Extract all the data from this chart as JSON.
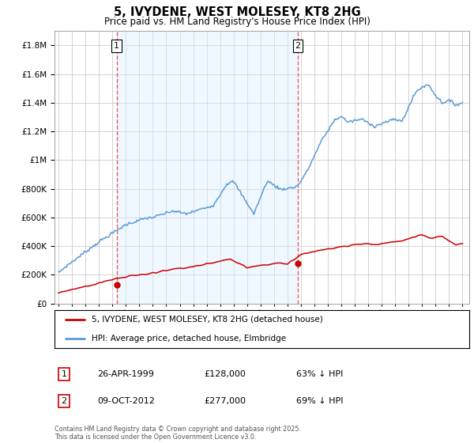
{
  "title": "5, IVYDENE, WEST MOLESEY, KT8 2HG",
  "subtitle": "Price paid vs. HM Land Registry's House Price Index (HPI)",
  "legend_line1": "5, IVYDENE, WEST MOLESEY, KT8 2HG (detached house)",
  "legend_line2": "HPI: Average price, detached house, Elmbridge",
  "annotation1": {
    "num": "1",
    "date": "26-APR-1999",
    "price": "£128,000",
    "pct": "63% ↓ HPI"
  },
  "annotation2": {
    "num": "2",
    "date": "09-OCT-2012",
    "price": "£277,000",
    "pct": "69% ↓ HPI"
  },
  "footer": "Contains HM Land Registry data © Crown copyright and database right 2025.\nThis data is licensed under the Open Government Licence v3.0.",
  "red_color": "#cc0000",
  "blue_color": "#5b9bd5",
  "blue_fill": "#ddeeff",
  "vline_color": "#e06060",
  "grid_color": "#cccccc",
  "bg_color": "#ffffff",
  "ylim_max": 1900000,
  "yticks": [
    0,
    200000,
    400000,
    600000,
    800000,
    1000000,
    1200000,
    1400000,
    1600000,
    1800000
  ],
  "xlim_start": 1994.7,
  "xlim_end": 2025.5,
  "sale1_x": 1999.32,
  "sale1_y": 128000,
  "sale2_x": 2012.77,
  "sale2_y": 277000,
  "hpi_years": [
    1995.0,
    1995.08,
    1995.17,
    1995.25,
    1995.33,
    1995.42,
    1995.5,
    1995.58,
    1995.67,
    1995.75,
    1995.83,
    1995.92,
    1996.0,
    1996.08,
    1996.17,
    1996.25,
    1996.33,
    1996.42,
    1996.5,
    1996.58,
    1996.67,
    1996.75,
    1996.83,
    1996.92,
    1997.0,
    1997.08,
    1997.17,
    1997.25,
    1997.33,
    1997.42,
    1997.5,
    1997.58,
    1997.67,
    1997.75,
    1997.83,
    1997.92,
    1998.0,
    1998.08,
    1998.17,
    1998.25,
    1998.33,
    1998.42,
    1998.5,
    1998.58,
    1998.67,
    1998.75,
    1998.83,
    1998.92,
    1999.0,
    1999.08,
    1999.17,
    1999.25,
    1999.33,
    1999.42,
    1999.5,
    1999.58,
    1999.67,
    1999.75,
    1999.83,
    1999.92,
    2000.0,
    2000.08,
    2000.17,
    2000.25,
    2000.33,
    2000.42,
    2000.5,
    2000.58,
    2000.67,
    2000.75,
    2000.83,
    2000.92,
    2001.0,
    2001.08,
    2001.17,
    2001.25,
    2001.33,
    2001.42,
    2001.5,
    2001.58,
    2001.67,
    2001.75,
    2001.83,
    2001.92,
    2002.0,
    2002.08,
    2002.17,
    2002.25,
    2002.33,
    2002.42,
    2002.5,
    2002.58,
    2002.67,
    2002.75,
    2002.83,
    2002.92,
    2003.0,
    2003.08,
    2003.17,
    2003.25,
    2003.33,
    2003.42,
    2003.5,
    2003.58,
    2003.67,
    2003.75,
    2003.83,
    2003.92,
    2004.0,
    2004.08,
    2004.17,
    2004.25,
    2004.33,
    2004.42,
    2004.5,
    2004.58,
    2004.67,
    2004.75,
    2004.83,
    2004.92,
    2005.0,
    2005.08,
    2005.17,
    2005.25,
    2005.33,
    2005.42,
    2005.5,
    2005.58,
    2005.67,
    2005.75,
    2005.83,
    2005.92,
    2006.0,
    2006.08,
    2006.17,
    2006.25,
    2006.33,
    2006.42,
    2006.5,
    2006.58,
    2006.67,
    2006.75,
    2006.83,
    2006.92,
    2007.0,
    2007.08,
    2007.17,
    2007.25,
    2007.33,
    2007.42,
    2007.5,
    2007.58,
    2007.67,
    2007.75,
    2007.83,
    2007.92,
    2008.0,
    2008.08,
    2008.17,
    2008.25,
    2008.33,
    2008.42,
    2008.5,
    2008.58,
    2008.67,
    2008.75,
    2008.83,
    2008.92,
    2009.0,
    2009.08,
    2009.17,
    2009.25,
    2009.33,
    2009.42,
    2009.5,
    2009.58,
    2009.67,
    2009.75,
    2009.83,
    2009.92,
    2010.0,
    2010.08,
    2010.17,
    2010.25,
    2010.33,
    2010.42,
    2010.5,
    2010.58,
    2010.67,
    2010.75,
    2010.83,
    2010.92,
    2011.0,
    2011.08,
    2011.17,
    2011.25,
    2011.33,
    2011.42,
    2011.5,
    2011.58,
    2011.67,
    2011.75,
    2011.83,
    2011.92,
    2012.0,
    2012.08,
    2012.17,
    2012.25,
    2012.33,
    2012.42,
    2012.5,
    2012.58,
    2012.67,
    2012.75,
    2012.83,
    2012.92,
    2013.0,
    2013.08,
    2013.17,
    2013.25,
    2013.33,
    2013.42,
    2013.5,
    2013.58,
    2013.67,
    2013.75,
    2013.83,
    2013.92,
    2014.0,
    2014.08,
    2014.17,
    2014.25,
    2014.33,
    2014.42,
    2014.5,
    2014.58,
    2014.67,
    2014.75,
    2014.83,
    2014.92,
    2015.0,
    2015.08,
    2015.17,
    2015.25,
    2015.33,
    2015.42,
    2015.5,
    2015.58,
    2015.67,
    2015.75,
    2015.83,
    2015.92,
    2016.0,
    2016.08,
    2016.17,
    2016.25,
    2016.33,
    2016.42,
    2016.5,
    2016.58,
    2016.67,
    2016.75,
    2016.83,
    2016.92,
    2017.0,
    2017.08,
    2017.17,
    2017.25,
    2017.33,
    2017.42,
    2017.5,
    2017.58,
    2017.67,
    2017.75,
    2017.83,
    2017.92,
    2018.0,
    2018.08,
    2018.17,
    2018.25,
    2018.33,
    2018.42,
    2018.5,
    2018.58,
    2018.67,
    2018.75,
    2018.83,
    2018.92,
    2019.0,
    2019.08,
    2019.17,
    2019.25,
    2019.33,
    2019.42,
    2019.5,
    2019.58,
    2019.67,
    2019.75,
    2019.83,
    2019.92,
    2020.0,
    2020.08,
    2020.17,
    2020.25,
    2020.33,
    2020.42,
    2020.5,
    2020.58,
    2020.67,
    2020.75,
    2020.83,
    2020.92,
    2021.0,
    2021.08,
    2021.17,
    2021.25,
    2021.33,
    2021.42,
    2021.5,
    2021.58,
    2021.67,
    2021.75,
    2021.83,
    2021.92,
    2022.0,
    2022.08,
    2022.17,
    2022.25,
    2022.33,
    2022.42,
    2022.5,
    2022.58,
    2022.67,
    2022.75,
    2022.83,
    2022.92,
    2023.0,
    2023.08,
    2023.17,
    2023.25,
    2023.33,
    2023.42,
    2023.5,
    2023.58,
    2023.67,
    2023.75,
    2023.83,
    2023.92,
    2024.0,
    2024.08,
    2024.17,
    2024.25,
    2024.33,
    2024.42,
    2024.5,
    2024.58,
    2024.67,
    2024.75,
    2024.83,
    2024.92,
    2025.0
  ],
  "red_years": [
    1995.0,
    1995.25,
    1995.5,
    1995.75,
    1996.0,
    1996.25,
    1996.5,
    1996.75,
    1997.0,
    1997.25,
    1997.5,
    1997.75,
    1998.0,
    1998.25,
    1998.5,
    1998.75,
    1999.0,
    1999.25,
    1999.5,
    1999.75,
    2000.0,
    2000.25,
    2000.5,
    2000.75,
    2001.0,
    2001.25,
    2001.5,
    2001.75,
    2002.0,
    2002.25,
    2002.5,
    2002.75,
    2003.0,
    2003.25,
    2003.5,
    2003.75,
    2004.0,
    2004.25,
    2004.5,
    2004.75,
    2005.0,
    2005.25,
    2005.5,
    2005.75,
    2006.0,
    2006.25,
    2006.5,
    2006.75,
    2007.0,
    2007.25,
    2007.5,
    2007.75,
    2008.0,
    2008.25,
    2008.5,
    2008.75,
    2009.0,
    2009.25,
    2009.5,
    2009.75,
    2010.0,
    2010.25,
    2010.5,
    2010.75,
    2011.0,
    2011.25,
    2011.5,
    2011.75,
    2012.0,
    2012.25,
    2012.5,
    2012.75,
    2013.0,
    2013.25,
    2013.5,
    2013.75,
    2014.0,
    2014.25,
    2014.5,
    2014.75,
    2015.0,
    2015.25,
    2015.5,
    2015.75,
    2016.0,
    2016.25,
    2016.5,
    2016.75,
    2017.0,
    2017.25,
    2017.5,
    2017.75,
    2018.0,
    2018.25,
    2018.5,
    2018.75,
    2019.0,
    2019.25,
    2019.5,
    2019.75,
    2020.0,
    2020.25,
    2020.5,
    2020.75,
    2021.0,
    2021.25,
    2021.5,
    2021.75,
    2022.0,
    2022.25,
    2022.5,
    2022.75,
    2023.0,
    2023.25,
    2023.5,
    2023.75,
    2024.0,
    2024.25,
    2024.5,
    2024.75,
    2025.0
  ]
}
